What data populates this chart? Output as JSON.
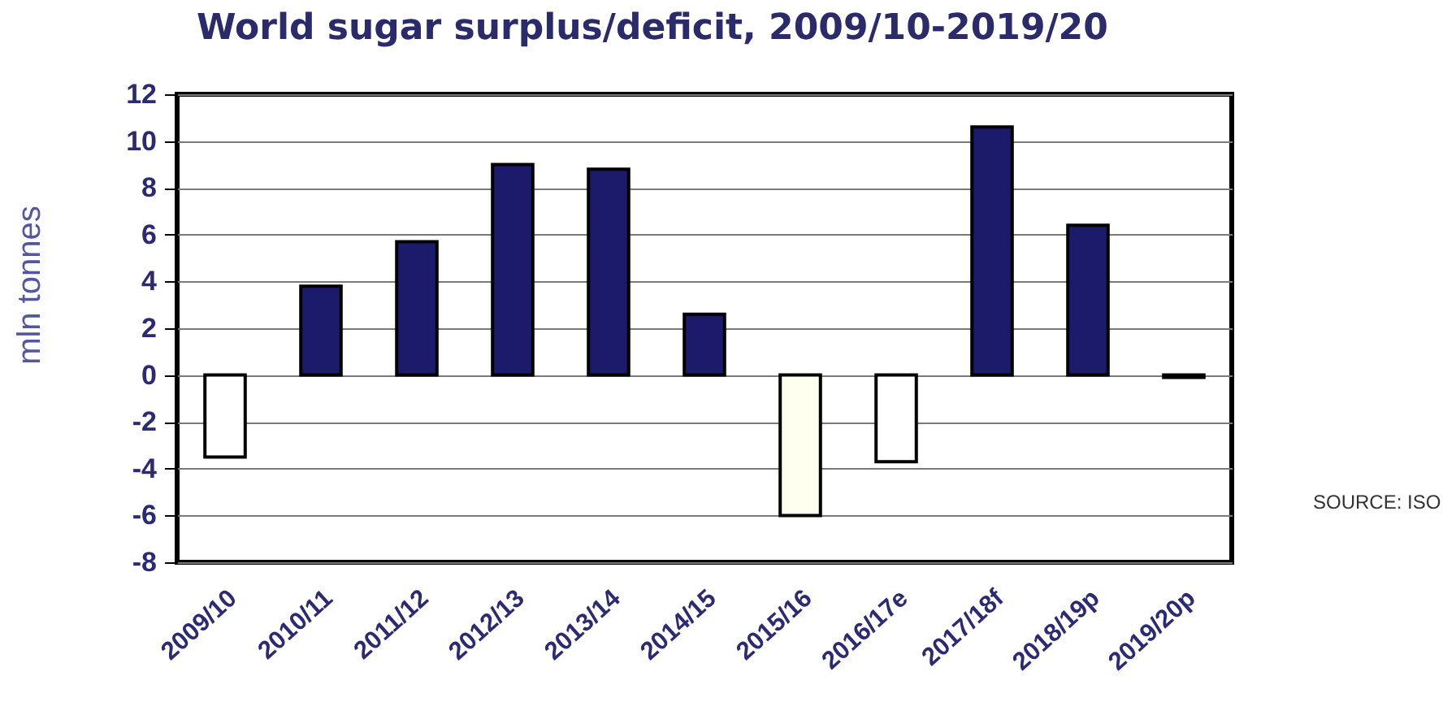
{
  "chart_data": {
    "type": "bar",
    "title": "World sugar surplus/deficit, 2009/10-2019/20",
    "ylabel": "mln tonnes",
    "categories": [
      "2009/10",
      "2010/11",
      "2011/12",
      "2012/13",
      "2013/14",
      "2014/15",
      "2015/16",
      "2016/17e",
      "2017/18f",
      "2018/19p",
      "2019/20p"
    ],
    "values": [
      -3.5,
      3.8,
      5.7,
      9.0,
      8.8,
      2.6,
      -6.0,
      -3.7,
      10.6,
      6.4,
      -0.1
    ],
    "colors": [
      "#ffffff",
      "#1b1a6b",
      "#1b1a6b",
      "#1b1a6b",
      "#1b1a6b",
      "#1b1a6b",
      "#fffff0",
      "#ffffff",
      "#1b1a6b",
      "#1b1a6b",
      "#1b1a6b"
    ],
    "ylim": [
      -8,
      12
    ],
    "yticks": [
      -8,
      -6,
      -4,
      -2,
      0,
      2,
      4,
      6,
      8,
      10,
      12
    ],
    "grid": "y",
    "annotations": [
      "SOURCE: ISO"
    ]
  }
}
